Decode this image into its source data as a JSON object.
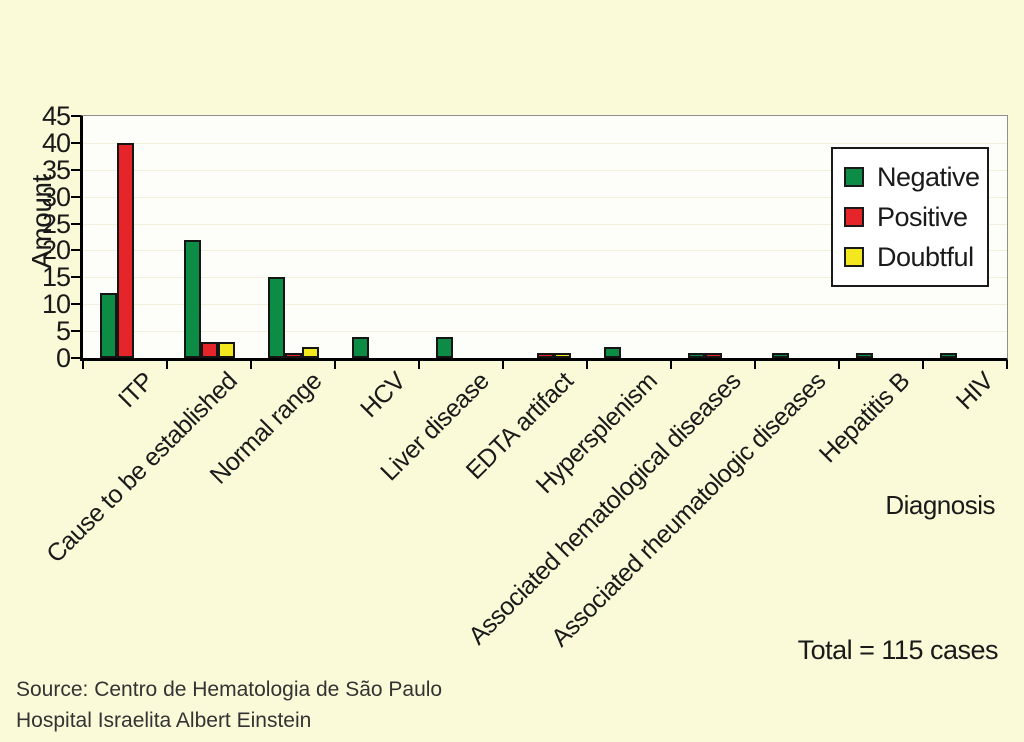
{
  "chart_data": {
    "type": "bar",
    "title": "",
    "xlabel": "Diagnosis",
    "ylabel": "Amount",
    "ylim": [
      0,
      45
    ],
    "ytick_step": 5,
    "yticks": [
      0,
      5,
      10,
      15,
      20,
      25,
      30,
      35,
      40,
      45
    ],
    "grid": "horizontal-faint",
    "legend_position": "top-right-inside",
    "categories": [
      "ITP",
      "Cause to be established",
      "Normal range",
      "HCV",
      "Liver disease",
      "EDTA artifact",
      "Hypersplenism",
      "Associated hematological diseases",
      "Associated rheumatologic diseases",
      "Hepatitis B",
      "HIV"
    ],
    "series": [
      {
        "name": "Negative",
        "color": "#0d8c46",
        "values": [
          12,
          22,
          15,
          4,
          4,
          0,
          2,
          1,
          1,
          1,
          1
        ]
      },
      {
        "name": "Positive",
        "color": "#e5252a",
        "values": [
          40,
          3,
          1,
          0,
          0,
          1,
          0,
          1,
          0,
          0,
          0
        ]
      },
      {
        "name": "Doubtful",
        "color": "#f3e81e",
        "values": [
          0,
          3,
          2,
          0,
          0,
          1,
          0,
          0,
          0,
          0,
          0
        ]
      }
    ]
  },
  "annotations": {
    "total": "Total = 115 cases"
  },
  "footer": {
    "source_line1": "Source: Centro de Hematologia de São Paulo",
    "source_line2": "Hospital Israelita Albert Einstein"
  },
  "colors": {
    "background": "#fafad8",
    "plot_background": "#fdfdf9",
    "negative": "#0d8c46",
    "positive": "#e5252a",
    "doubtful": "#f3e81e"
  }
}
